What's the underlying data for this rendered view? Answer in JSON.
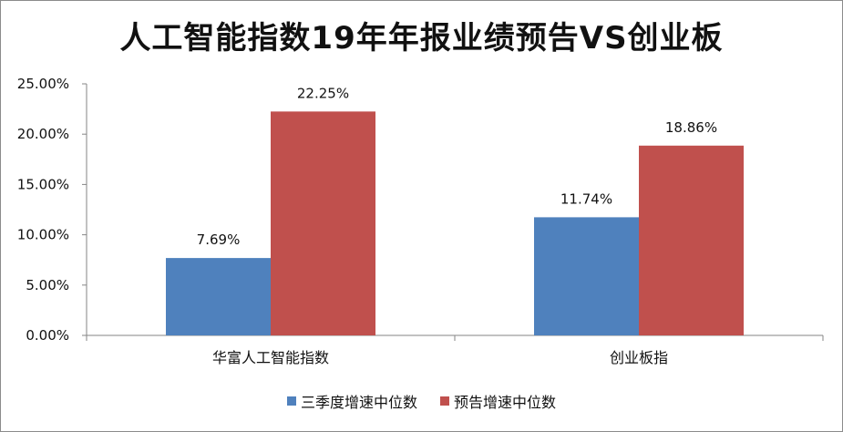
{
  "chart_data": {
    "type": "bar",
    "title": "人工智能指数19年年报业绩预告VS创业板",
    "categories": [
      "华富人工智能指数",
      "创业板指"
    ],
    "series": [
      {
        "name": "三季度增速中位数",
        "values": [
          7.69,
          11.74
        ],
        "labels": [
          "7.69%",
          "11.74%"
        ],
        "color": "#4f81bd"
      },
      {
        "name": "预告增速中位数",
        "values": [
          22.25,
          18.86
        ],
        "labels": [
          "22.25%",
          "18.86%"
        ],
        "color": "#c0504d"
      }
    ],
    "ylim": [
      0,
      25
    ],
    "yticks": [
      0,
      5,
      10,
      15,
      20,
      25
    ],
    "ytick_labels": [
      "0.00%",
      "5.00%",
      "10.00%",
      "15.00%",
      "20.00%",
      "25.00%"
    ],
    "xlabel": "",
    "ylabel": "",
    "grid": false,
    "legend_position": "bottom"
  }
}
